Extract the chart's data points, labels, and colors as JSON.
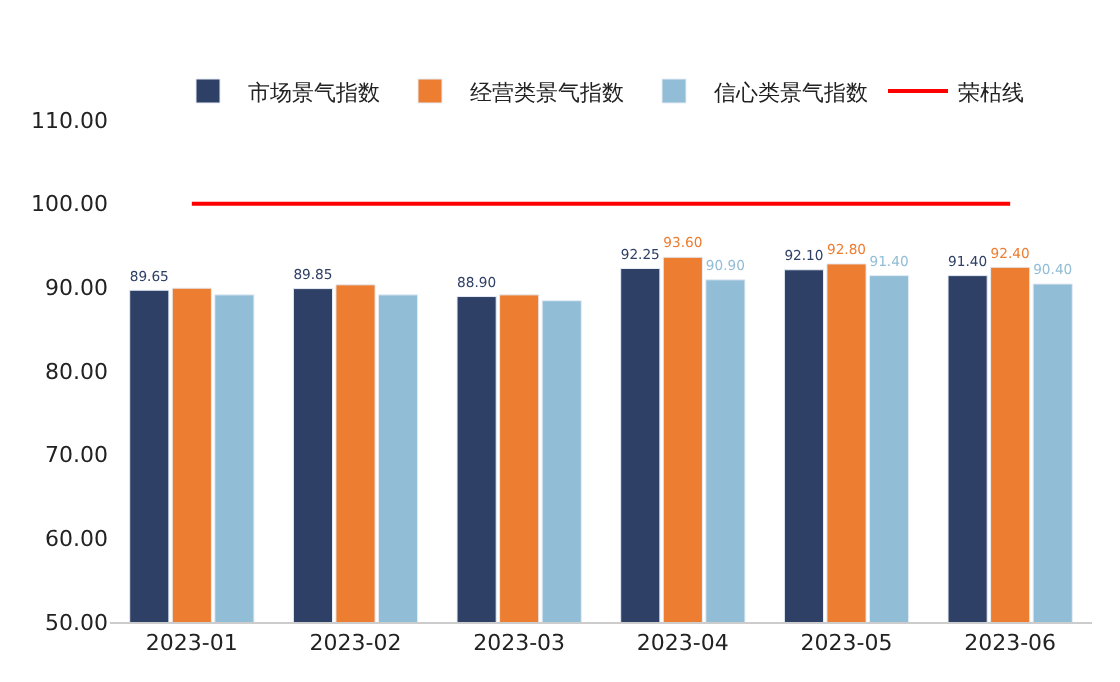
{
  "chart_data": {
    "type": "bar",
    "categories": [
      "2023-01",
      "2023-02",
      "2023-03",
      "2023-04",
      "2023-05",
      "2023-06"
    ],
    "series": [
      {
        "name": "市场景气指数",
        "color": "#2f4066",
        "values": [
          89.65,
          89.85,
          88.9,
          92.25,
          92.1,
          91.4
        ],
        "value_labels": [
          "89.65",
          "89.85",
          "88.90",
          "92.25",
          "92.10",
          "91.40"
        ]
      },
      {
        "name": "经营类景气指数",
        "color": "#ed7d31",
        "values": [
          89.9,
          90.3,
          89.1,
          93.6,
          92.8,
          92.4
        ],
        "value_labels": [
          null,
          null,
          null,
          "93.60",
          "92.80",
          "92.40"
        ]
      },
      {
        "name": "信心类景气指数",
        "color": "#91bdd6",
        "values": [
          89.1,
          89.1,
          88.4,
          90.9,
          91.4,
          90.4
        ],
        "value_labels": [
          null,
          null,
          null,
          "90.90",
          "91.40",
          "90.40"
        ]
      },
      {
        "name": "荣枯线",
        "type": "line",
        "color": "#ff0000",
        "values": [
          100,
          100,
          100,
          100,
          100,
          100
        ],
        "marker": "none"
      }
    ],
    "ylim": [
      50,
      110
    ],
    "yticks": [
      {
        "value": 50,
        "label": "50.00"
      },
      {
        "value": 60,
        "label": "60.00"
      },
      {
        "value": 70,
        "label": "70.00"
      },
      {
        "value": 80,
        "label": "80.00"
      },
      {
        "value": 90,
        "label": "90.00"
      },
      {
        "value": 100,
        "label": "100.00"
      },
      {
        "value": 110,
        "label": "110.00"
      }
    ],
    "legend": "top"
  }
}
